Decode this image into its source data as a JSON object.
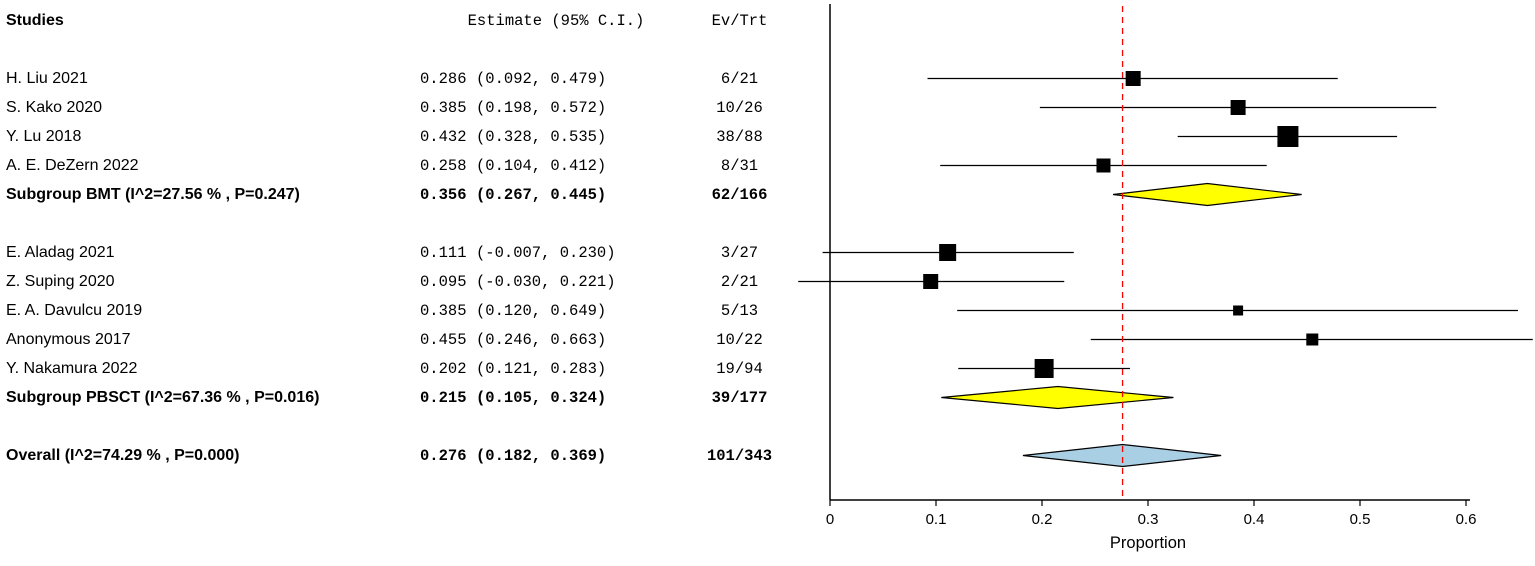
{
  "chart_data": {
    "type": "scatter",
    "subtype": "forest-plot",
    "title": "",
    "xlabel": "Proportion",
    "x_ticks": [
      "0",
      "0.1",
      "0.2",
      "0.3",
      "0.4",
      "0.5",
      "0.6"
    ],
    "x_tick_values": [
      0,
      0.1,
      0.2,
      0.3,
      0.4,
      0.5,
      0.6
    ],
    "xlim": [
      -0.04,
      0.665
    ],
    "reference_line": 0.276,
    "grid": false,
    "legend": "none",
    "colors": {
      "study_marker": "#000000",
      "subgroup_diamond": "#ffff00",
      "overall_diamond": "#a9cfe5",
      "reference_line": "#ff0000",
      "axis": "#000000"
    },
    "columns": {
      "studies": "Studies",
      "estimate": "Estimate (95% C.I.)",
      "ev_trt": "Ev/Trt"
    },
    "rows": [
      {
        "kind": "header"
      },
      {
        "kind": "spacer"
      },
      {
        "kind": "study",
        "label": "H. Liu 2021",
        "est": 0.286,
        "lo": 0.092,
        "hi": 0.479,
        "est_text": "0.286",
        "ci_text": "(0.092, 0.479)",
        "ev_trt": "6/21",
        "marker_size": 15
      },
      {
        "kind": "study",
        "label": "S. Kako 2020",
        "est": 0.385,
        "lo": 0.198,
        "hi": 0.572,
        "est_text": "0.385",
        "ci_text": "(0.198, 0.572)",
        "ev_trt": "10/26",
        "marker_size": 15
      },
      {
        "kind": "study",
        "label": "Y. Lu 2018",
        "est": 0.432,
        "lo": 0.328,
        "hi": 0.535,
        "est_text": "0.432",
        "ci_text": "(0.328, 0.535)",
        "ev_trt": "38/88",
        "marker_size": 21
      },
      {
        "kind": "study",
        "label": "A. E. DeZern 2022",
        "est": 0.258,
        "lo": 0.104,
        "hi": 0.412,
        "est_text": "0.258",
        "ci_text": "(0.104, 0.412)",
        "ev_trt": "8/31",
        "marker_size": 14
      },
      {
        "kind": "subgroup",
        "label": "Subgroup BMT (I^2=27.56 % , P=0.247)",
        "est": 0.356,
        "lo": 0.267,
        "hi": 0.445,
        "est_text": "0.356",
        "ci_text": "(0.267, 0.445)",
        "ev_trt": "62/166"
      },
      {
        "kind": "spacer"
      },
      {
        "kind": "study",
        "label": "E. Aladag 2021",
        "est": 0.111,
        "lo": -0.007,
        "hi": 0.23,
        "est_text": "0.111",
        "ci_text": "(-0.007, 0.230)",
        "ev_trt": "3/27",
        "marker_size": 17
      },
      {
        "kind": "study",
        "label": "Z. Suping 2020",
        "est": 0.095,
        "lo": -0.03,
        "hi": 0.221,
        "est_text": "0.095",
        "ci_text": "(-0.030, 0.221)",
        "ev_trt": "2/21",
        "marker_size": 15
      },
      {
        "kind": "study",
        "label": "E. A. Davulcu 2019",
        "est": 0.385,
        "lo": 0.12,
        "hi": 0.649,
        "est_text": "0.385",
        "ci_text": "(0.120, 0.649)",
        "ev_trt": "5/13",
        "marker_size": 10
      },
      {
        "kind": "study",
        "label": "Anonymous 2017",
        "est": 0.455,
        "lo": 0.246,
        "hi": 0.663,
        "est_text": "0.455",
        "ci_text": "(0.246, 0.663)",
        "ev_trt": "10/22",
        "marker_size": 12
      },
      {
        "kind": "study",
        "label": "Y. Nakamura 2022",
        "est": 0.202,
        "lo": 0.121,
        "hi": 0.283,
        "est_text": "0.202",
        "ci_text": "(0.121, 0.283)",
        "ev_trt": "19/94",
        "marker_size": 19
      },
      {
        "kind": "subgroup",
        "label": "Subgroup PBSCT (I^2=67.36 % , P=0.016)",
        "est": 0.215,
        "lo": 0.105,
        "hi": 0.324,
        "est_text": "0.215",
        "ci_text": "(0.105, 0.324)",
        "ev_trt": "39/177"
      },
      {
        "kind": "spacer"
      },
      {
        "kind": "overall",
        "label": "Overall (I^2=74.29 % , P=0.000)",
        "est": 0.276,
        "lo": 0.182,
        "hi": 0.369,
        "est_text": "0.276",
        "ci_text": "(0.182, 0.369)",
        "ev_trt": "101/343"
      }
    ]
  }
}
